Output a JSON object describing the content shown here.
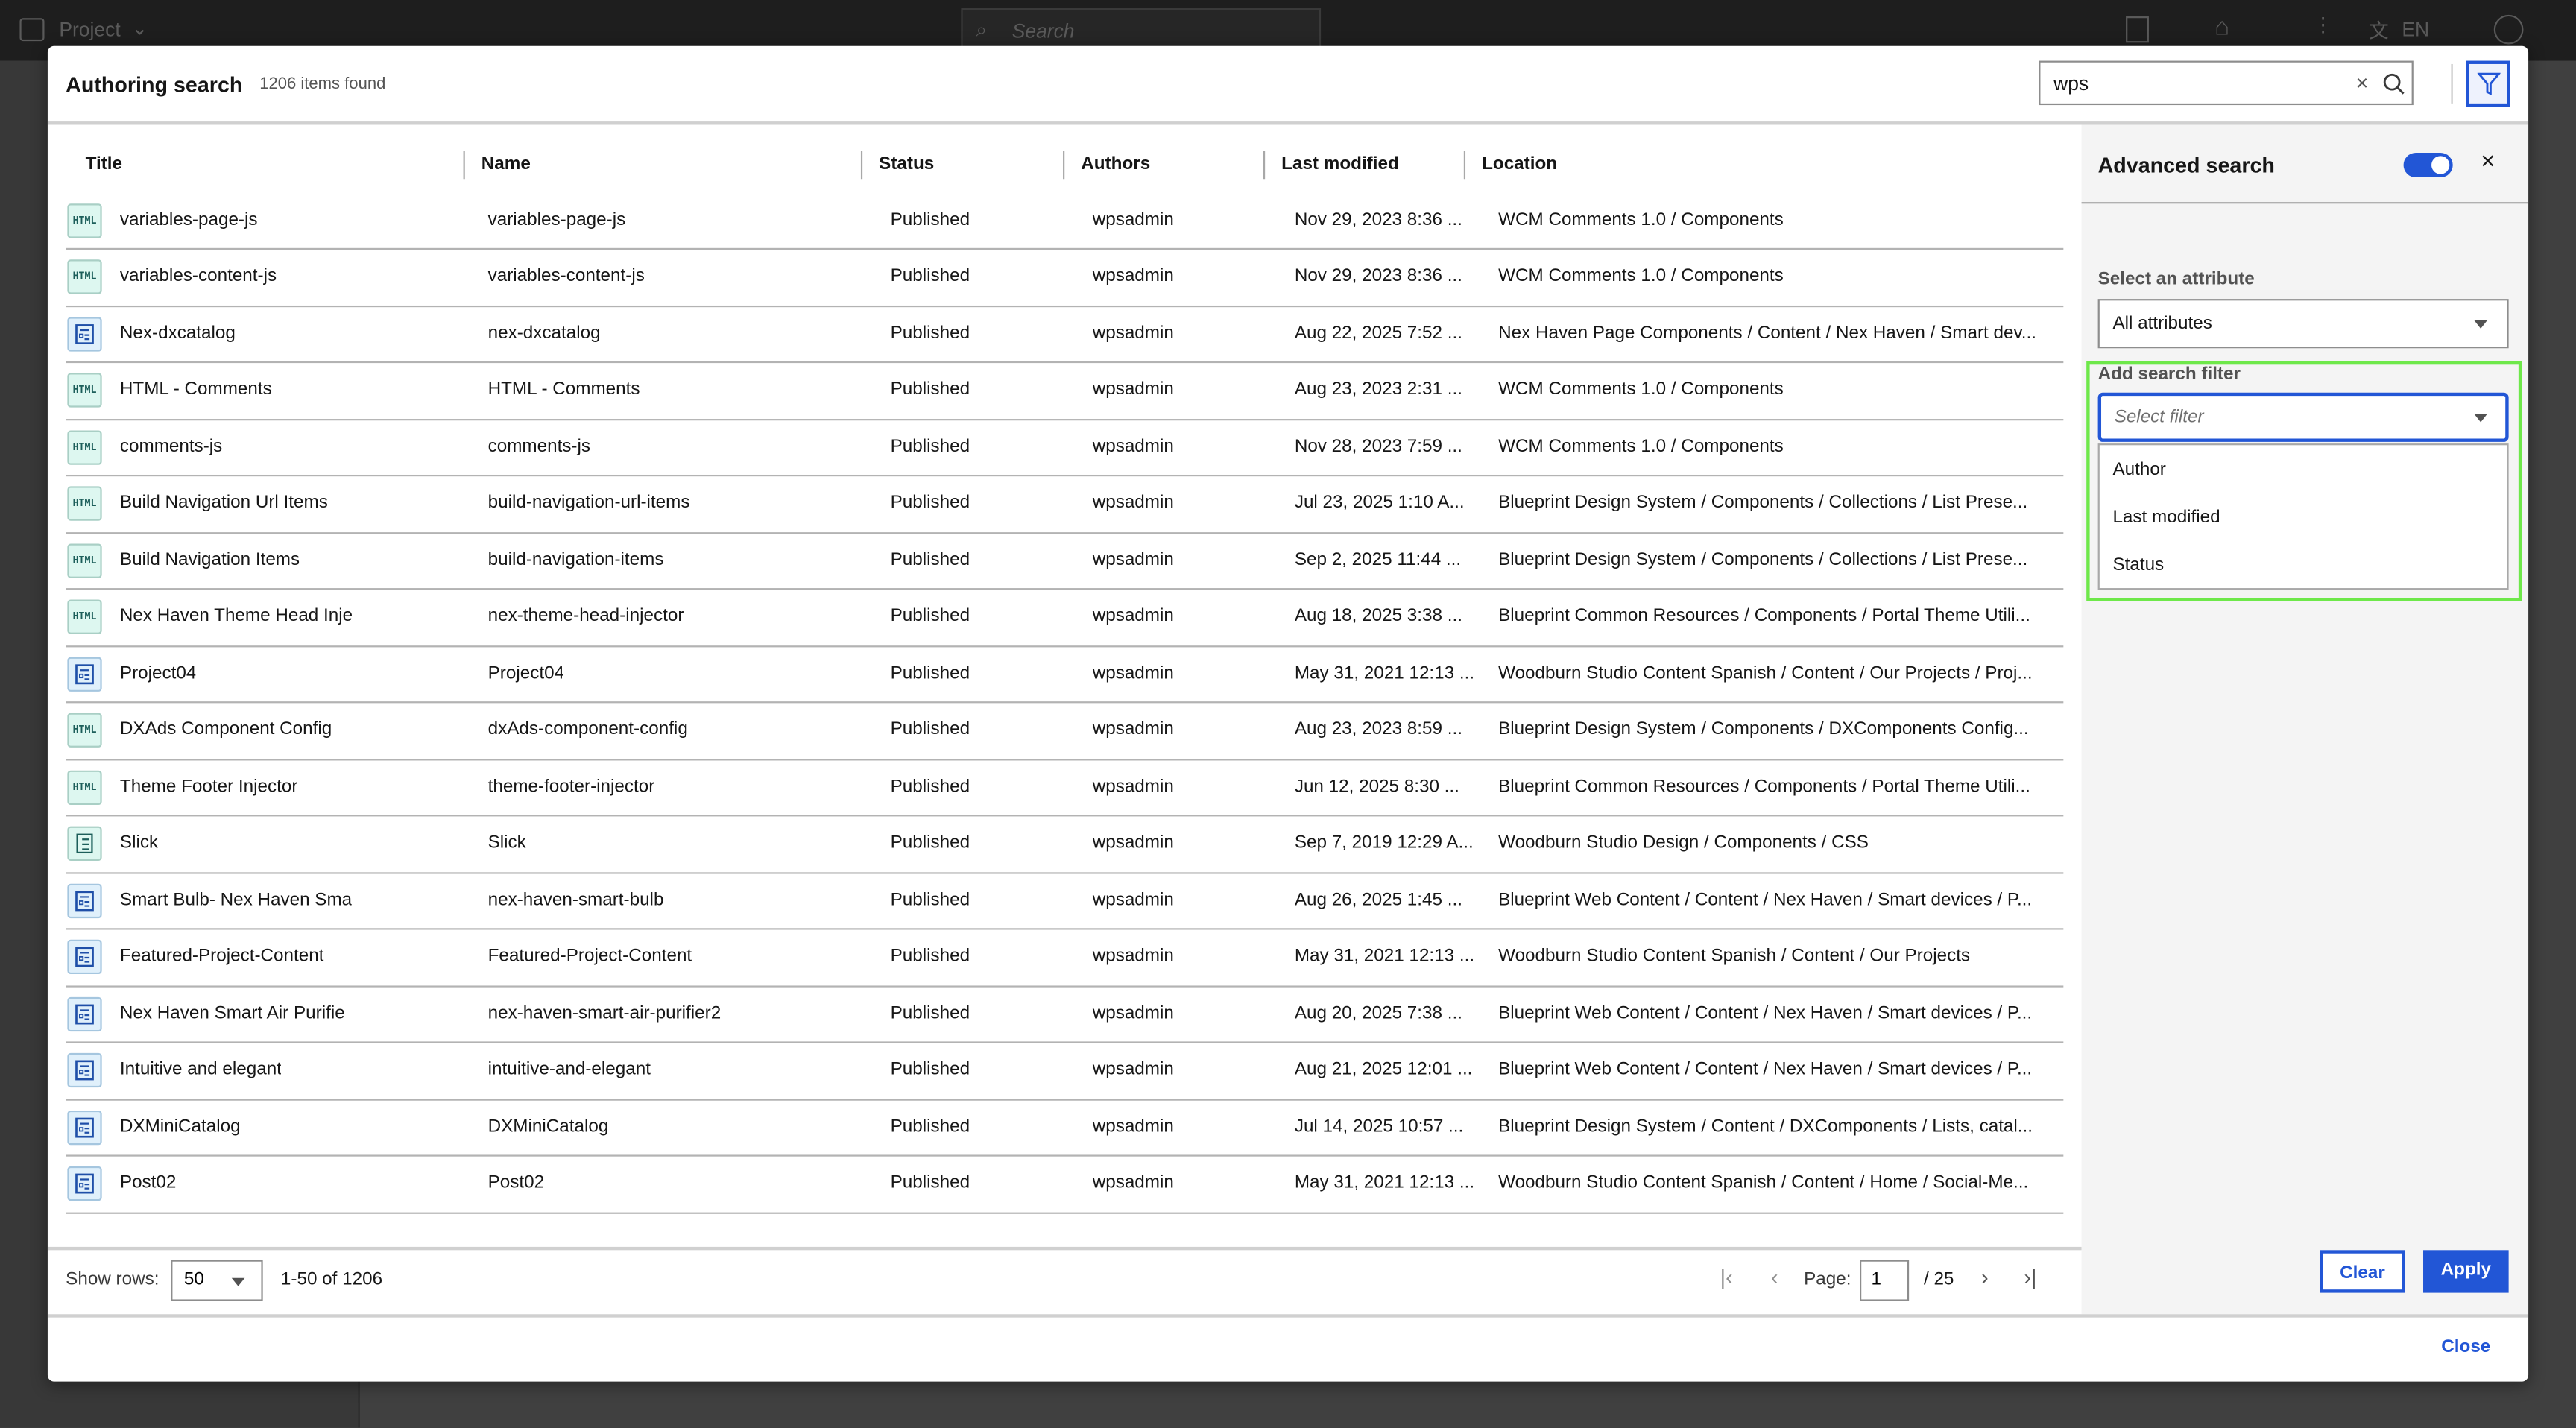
{
  "topbar": {
    "project_label": "Project",
    "search_placeholder": "Search",
    "language": "EN"
  },
  "modal": {
    "title": "Authoring search",
    "items_found": "1206 items found",
    "search": {
      "value": "wps"
    },
    "columns": [
      "Title",
      "Name",
      "Status",
      "Authors",
      "Last modified",
      "Location"
    ],
    "rows": [
      {
        "icon": "html",
        "title": "variables-page-js",
        "name": "variables-page-js",
        "status": "Published",
        "author": "wpsadmin",
        "modified": "Nov 29, 2023 8:36 ...",
        "location": "WCM Comments 1.0 / Components"
      },
      {
        "icon": "html",
        "title": "variables-content-js",
        "name": "variables-content-js",
        "status": "Published",
        "author": "wpsadmin",
        "modified": "Nov 29, 2023 8:36 ...",
        "location": "WCM Comments 1.0 / Components"
      },
      {
        "icon": "content",
        "title": "Nex-dxcatalog",
        "name": "nex-dxcatalog",
        "status": "Published",
        "author": "wpsadmin",
        "modified": "Aug 22, 2025 7:52 ...",
        "location": "Nex Haven Page Components / Content / Nex Haven / Smart dev..."
      },
      {
        "icon": "html",
        "title": "HTML - Comments",
        "name": "HTML - Comments",
        "status": "Published",
        "author": "wpsadmin",
        "modified": "Aug 23, 2023 2:31 ...",
        "location": "WCM Comments 1.0 / Components"
      },
      {
        "icon": "html",
        "title": "comments-js",
        "name": "comments-js",
        "status": "Published",
        "author": "wpsadmin",
        "modified": "Nov 28, 2023 7:59 ...",
        "location": "WCM Comments 1.0 / Components"
      },
      {
        "icon": "html",
        "title": "Build Navigation Url Items",
        "name": "build-navigation-url-items",
        "status": "Published",
        "author": "wpsadmin",
        "modified": "Jul 23, 2025 1:10 A...",
        "location": "Blueprint Design System / Components / Collections / List Prese..."
      },
      {
        "icon": "html",
        "title": "Build Navigation Items",
        "name": "build-navigation-items",
        "status": "Published",
        "author": "wpsadmin",
        "modified": "Sep 2, 2025 11:44 ...",
        "location": "Blueprint Design System / Components / Collections / List Prese..."
      },
      {
        "icon": "html",
        "title": "Nex Haven Theme Head Inje",
        "name": "nex-theme-head-injector",
        "status": "Published",
        "author": "wpsadmin",
        "modified": "Aug 18, 2025 3:38 ...",
        "location": "Blueprint Common Resources / Components / Portal Theme Utili..."
      },
      {
        "icon": "content",
        "title": "Project04",
        "name": "Project04",
        "status": "Published",
        "author": "wpsadmin",
        "modified": "May 31, 2021 12:13 ...",
        "location": "Woodburn Studio Content Spanish / Content / Our Projects / Proj..."
      },
      {
        "icon": "html",
        "title": "DXAds Component Config",
        "name": "dxAds-component-config",
        "status": "Published",
        "author": "wpsadmin",
        "modified": "Aug 23, 2023 8:59 ...",
        "location": "Blueprint Design System / Components / DXComponents Config..."
      },
      {
        "icon": "html",
        "title": "Theme Footer Injector",
        "name": "theme-footer-injector",
        "status": "Published",
        "author": "wpsadmin",
        "modified": "Jun 12, 2025 8:30 ...",
        "location": "Blueprint Common Resources / Components / Portal Theme Utili..."
      },
      {
        "icon": "doc",
        "title": "Slick",
        "name": "Slick",
        "status": "Published",
        "author": "wpsadmin",
        "modified": "Sep 7, 2019 12:29 A...",
        "location": "Woodburn Studio Design / Components / CSS"
      },
      {
        "icon": "content",
        "title": "Smart Bulb- Nex Haven Sma",
        "name": "nex-haven-smart-bulb",
        "status": "Published",
        "author": "wpsadmin",
        "modified": "Aug 26, 2025 1:45 ...",
        "location": "Blueprint Web Content / Content / Nex Haven / Smart devices / P..."
      },
      {
        "icon": "content",
        "title": "Featured-Project-Content",
        "name": "Featured-Project-Content",
        "status": "Published",
        "author": "wpsadmin",
        "modified": "May 31, 2021 12:13 ...",
        "location": "Woodburn Studio Content Spanish / Content / Our Projects"
      },
      {
        "icon": "content",
        "title": "Nex Haven Smart Air Purifie",
        "name": "nex-haven-smart-air-purifier2",
        "status": "Published",
        "author": "wpsadmin",
        "modified": "Aug 20, 2025 7:38 ...",
        "location": "Blueprint Web Content / Content / Nex Haven / Smart devices / P..."
      },
      {
        "icon": "content",
        "title": "Intuitive and elegant",
        "name": "intuitive-and-elegant",
        "status": "Published",
        "author": "wpsadmin",
        "modified": "Aug 21, 2025 12:01 ...",
        "location": "Blueprint Web Content / Content / Nex Haven / Smart devices / P..."
      },
      {
        "icon": "content",
        "title": "DXMiniCatalog",
        "name": "DXMiniCatalog",
        "status": "Published",
        "author": "wpsadmin",
        "modified": "Jul 14, 2025 10:57 ...",
        "location": "Blueprint Design System / Content / DXComponents / Lists, catal..."
      },
      {
        "icon": "content",
        "title": "Post02",
        "name": "Post02",
        "status": "Published",
        "author": "wpsadmin",
        "modified": "May 31, 2021 12:13 ...",
        "location": "Woodburn Studio Content Spanish / Content / Home / Social-Me..."
      }
    ],
    "pagination": {
      "show_rows_label": "Show rows:",
      "rows_value": "50",
      "range": "1-50 of 1206",
      "page_label": "Page:",
      "page": "1",
      "total_pages": "/ 25"
    },
    "close_label": "Close"
  },
  "advanced": {
    "title": "Advanced search",
    "toggle_on": true,
    "attribute_label": "Select an attribute",
    "attribute_value": "All attributes",
    "filter_label": "Add search filter",
    "filter_placeholder": "Select filter",
    "filter_options": [
      "Author",
      "Last modified",
      "Status"
    ],
    "clear_label": "Clear",
    "apply_label": "Apply",
    "accent": "#2256d6",
    "highlight": "#6ee84a"
  }
}
